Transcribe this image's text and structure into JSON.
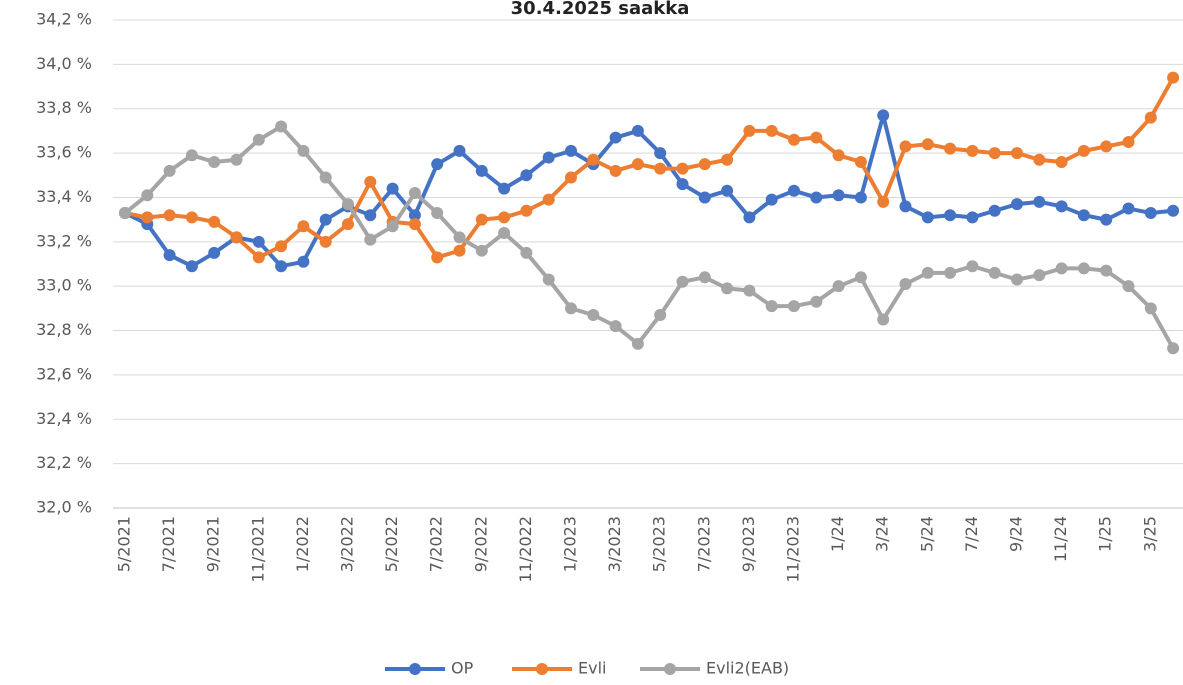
{
  "chart_data": {
    "type": "line",
    "title": "30.4.2025 saakka",
    "categories": [
      "5/2021",
      null,
      "7/2021",
      null,
      "9/2021",
      null,
      "11/2021",
      null,
      "1/2022",
      null,
      "3/2022",
      null,
      "5/2022",
      null,
      "7/2022",
      null,
      "9/2022",
      null,
      "11/2022",
      null,
      "1/2023",
      null,
      "3/2023",
      null,
      "5/2023",
      null,
      "7/2023",
      null,
      "9/2023",
      null,
      "11/2023",
      null,
      "1/24",
      null,
      "3/24",
      null,
      "5/24",
      null,
      "7/24",
      null,
      "9/24",
      null,
      "11/24",
      null,
      "1/25",
      null,
      "3/25",
      null
    ],
    "series": [
      {
        "name": "OP",
        "color": "#4472c4",
        "values": [
          33.33,
          33.28,
          33.14,
          33.09,
          33.15,
          33.22,
          33.2,
          33.09,
          33.11,
          33.3,
          33.36,
          33.32,
          33.44,
          33.32,
          33.55,
          33.61,
          33.52,
          33.44,
          33.5,
          33.58,
          33.61,
          33.55,
          33.67,
          33.7,
          33.6,
          33.46,
          33.4,
          33.43,
          33.31,
          33.39,
          33.43,
          33.4,
          33.41,
          33.4,
          33.77,
          33.36,
          33.31,
          33.32,
          33.31,
          33.34,
          33.37,
          33.38,
          33.36,
          33.32,
          33.3,
          33.35,
          33.33,
          33.34
        ]
      },
      {
        "name": "Evli",
        "color": "#ed7d31",
        "values": [
          33.33,
          33.31,
          33.32,
          33.31,
          33.29,
          33.22,
          33.13,
          33.18,
          33.27,
          33.2,
          33.28,
          33.47,
          33.29,
          33.28,
          33.13,
          33.16,
          33.3,
          33.31,
          33.34,
          33.39,
          33.49,
          33.57,
          33.52,
          33.55,
          33.53,
          33.53,
          33.55,
          33.57,
          33.7,
          33.7,
          33.66,
          33.67,
          33.59,
          33.56,
          33.38,
          33.63,
          33.64,
          33.62,
          33.61,
          33.6,
          33.6,
          33.57,
          33.56,
          33.61,
          33.63,
          33.65,
          33.76,
          33.94
        ]
      },
      {
        "name": "Evli2(EAB)",
        "color": "#a5a5a5",
        "values": [
          33.33,
          33.41,
          33.52,
          33.59,
          33.56,
          33.57,
          33.66,
          33.72,
          33.61,
          33.49,
          33.37,
          33.21,
          33.27,
          33.42,
          33.33,
          33.22,
          33.16,
          33.24,
          33.15,
          33.03,
          32.9,
          32.87,
          32.82,
          32.74,
          32.87,
          33.02,
          33.04,
          32.99,
          32.98,
          32.91,
          32.91,
          32.93,
          33.0,
          33.04,
          32.85,
          33.01,
          33.06,
          33.06,
          33.09,
          33.06,
          33.03,
          33.05,
          33.08,
          33.08,
          33.07,
          33.0,
          32.9,
          32.72
        ]
      }
    ],
    "ylim": [
      32.0,
      34.2
    ],
    "yticks": [
      {
        "value": 32.0,
        "label": "32,0 %"
      },
      {
        "value": 32.2,
        "label": "32,2 %"
      },
      {
        "value": 32.4,
        "label": "32,4 %"
      },
      {
        "value": 32.6,
        "label": "32,6 %"
      },
      {
        "value": 32.8,
        "label": "32,8 %"
      },
      {
        "value": 33.0,
        "label": "33,0 %"
      },
      {
        "value": 33.2,
        "label": "33,2 %"
      },
      {
        "value": 33.4,
        "label": "33,4 %"
      },
      {
        "value": 33.6,
        "label": "33,6 %"
      },
      {
        "value": 33.8,
        "label": "33,8 %"
      },
      {
        "value": 34.0,
        "label": "34,0 %"
      },
      {
        "value": 34.2,
        "label": "34,2 %"
      }
    ],
    "grid": true,
    "legend": "bottom"
  }
}
